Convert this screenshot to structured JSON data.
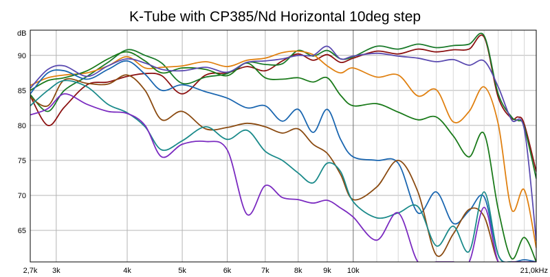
{
  "chart_data": {
    "type": "line",
    "title": "K-Tube with CP385/Nd Horizontal 10deg step",
    "ylabel": "dB",
    "x_scale": "log",
    "xlim": [
      2700,
      21000
    ],
    "ylim": [
      60.5,
      93.6
    ],
    "grid": true,
    "legend": "none",
    "x_ticks": [
      {
        "v": 2700,
        "label": "2,7k"
      },
      {
        "v": 3000,
        "label": "3k"
      },
      {
        "v": 4000,
        "label": "4k"
      },
      {
        "v": 5000,
        "label": "5k"
      },
      {
        "v": 6000,
        "label": "6k"
      },
      {
        "v": 7000,
        "label": "7k"
      },
      {
        "v": 8000,
        "label": "8k"
      },
      {
        "v": 9000,
        "label": "9k"
      },
      {
        "v": 10000,
        "label": "10k"
      },
      {
        "v": 21000,
        "label": "21,0kHz"
      }
    ],
    "y_ticks": [
      {
        "v": 65,
        "label": "65"
      },
      {
        "v": 70,
        "label": "70"
      },
      {
        "v": 75,
        "label": "75"
      },
      {
        "v": 80,
        "label": "80"
      },
      {
        "v": 85,
        "label": "85"
      },
      {
        "v": 90,
        "label": "90"
      }
    ],
    "minor_x_grid": [
      11000,
      12000,
      13000,
      14000,
      15000,
      16000,
      17000,
      18000,
      19000,
      20000
    ],
    "series": [
      {
        "color": "#8b1010",
        "points": [
          [
            2700,
            84.2
          ],
          [
            2900,
            80.0
          ],
          [
            3100,
            82.6
          ],
          [
            3400,
            85.8
          ],
          [
            3700,
            86.2
          ],
          [
            4000,
            87.0
          ],
          [
            4300,
            87.4
          ],
          [
            4600,
            87.1
          ],
          [
            5000,
            84.5
          ],
          [
            5500,
            87.2
          ],
          [
            6000,
            87.5
          ],
          [
            6500,
            88.4
          ],
          [
            7000,
            87.8
          ],
          [
            7500,
            89.2
          ],
          [
            8000,
            90.2
          ],
          [
            8500,
            89.3
          ],
          [
            9000,
            90.1
          ],
          [
            9500,
            89.0
          ],
          [
            10000,
            89.6
          ],
          [
            11000,
            90.6
          ],
          [
            12000,
            90.2
          ],
          [
            13000,
            90.9
          ],
          [
            14000,
            90.5
          ],
          [
            15000,
            90.8
          ],
          [
            16000,
            90.9
          ],
          [
            17000,
            92.6
          ],
          [
            18000,
            84.0
          ],
          [
            19000,
            81.0
          ],
          [
            19500,
            81.2
          ],
          [
            20000,
            80.2
          ],
          [
            21000,
            73.4
          ]
        ]
      },
      {
        "color": "#1a7a2a",
        "points": [
          [
            2700,
            84.4
          ],
          [
            2900,
            82.0
          ],
          [
            3100,
            85.0
          ],
          [
            3400,
            87.0
          ],
          [
            3700,
            89.0
          ],
          [
            4000,
            90.8
          ],
          [
            4300,
            90.0
          ],
          [
            4600,
            88.9
          ],
          [
            5000,
            86.0
          ],
          [
            5500,
            86.9
          ],
          [
            6000,
            87.4
          ],
          [
            6500,
            89.0
          ],
          [
            7000,
            88.7
          ],
          [
            7500,
            88.8
          ],
          [
            8000,
            90.7
          ],
          [
            8500,
            89.9
          ],
          [
            9000,
            90.7
          ],
          [
            9500,
            89.5
          ],
          [
            10000,
            89.8
          ],
          [
            11000,
            91.3
          ],
          [
            12000,
            90.9
          ],
          [
            13000,
            91.6
          ],
          [
            14000,
            91.1
          ],
          [
            15000,
            91.4
          ],
          [
            16000,
            91.6
          ],
          [
            17000,
            92.8
          ],
          [
            18000,
            84.5
          ],
          [
            19000,
            81.2
          ],
          [
            19500,
            80.7
          ],
          [
            20000,
            79.8
          ],
          [
            21000,
            72.4
          ]
        ]
      },
      {
        "color": "#e08010",
        "points": [
          [
            2700,
            85.7
          ],
          [
            2900,
            86.8
          ],
          [
            3100,
            87.2
          ],
          [
            3400,
            87.5
          ],
          [
            3700,
            88.5
          ],
          [
            4000,
            89.8
          ],
          [
            4300,
            88.2
          ],
          [
            4600,
            88.3
          ],
          [
            5000,
            88.5
          ],
          [
            5500,
            89.1
          ],
          [
            6000,
            88.4
          ],
          [
            6500,
            89.3
          ],
          [
            7000,
            89.6
          ],
          [
            7500,
            90.4
          ],
          [
            8000,
            90.6
          ],
          [
            8500,
            90.1
          ],
          [
            9000,
            88.5
          ],
          [
            9500,
            87.5
          ],
          [
            10000,
            88.2
          ],
          [
            11000,
            86.9
          ],
          [
            12000,
            87.2
          ],
          [
            13000,
            84.2
          ],
          [
            14000,
            85.1
          ],
          [
            15000,
            80.5
          ],
          [
            16000,
            82.0
          ],
          [
            17000,
            85.5
          ],
          [
            18000,
            80.2
          ],
          [
            19000,
            68.0
          ],
          [
            20000,
            70.8
          ],
          [
            21000,
            62.5
          ]
        ]
      },
      {
        "color": "#1a7a1a",
        "points": [
          [
            2700,
            85.0
          ],
          [
            2900,
            86.4
          ],
          [
            3100,
            86.8
          ],
          [
            3400,
            87.8
          ],
          [
            3700,
            89.5
          ],
          [
            4000,
            90.5
          ],
          [
            4300,
            89.2
          ],
          [
            4600,
            87.5
          ],
          [
            5000,
            88.2
          ],
          [
            5500,
            88.0
          ],
          [
            6000,
            87.1
          ],
          [
            6500,
            88.9
          ],
          [
            7000,
            86.8
          ],
          [
            7500,
            86.6
          ],
          [
            8000,
            86.8
          ],
          [
            8500,
            86.2
          ],
          [
            9000,
            86.8
          ],
          [
            9500,
            84.3
          ],
          [
            10000,
            82.8
          ],
          [
            11000,
            83.1
          ],
          [
            12000,
            81.9
          ],
          [
            13000,
            80.8
          ],
          [
            14000,
            81.2
          ],
          [
            15000,
            78.5
          ],
          [
            16000,
            75.5
          ],
          [
            17000,
            78.8
          ],
          [
            18000,
            68.0
          ],
          [
            19000,
            61.0
          ],
          [
            20000,
            64.0
          ],
          [
            21000,
            60.5
          ]
        ]
      },
      {
        "color": "#5a4ab0",
        "points": [
          [
            2700,
            85.3
          ],
          [
            2900,
            88.0
          ],
          [
            3100,
            88.5
          ],
          [
            3400,
            87.0
          ],
          [
            3700,
            88.5
          ],
          [
            4000,
            89.5
          ],
          [
            4300,
            88.9
          ],
          [
            4600,
            88.0
          ],
          [
            5000,
            87.8
          ],
          [
            5500,
            88.3
          ],
          [
            6000,
            87.6
          ],
          [
            6500,
            89.0
          ],
          [
            7000,
            89.2
          ],
          [
            7500,
            89.5
          ],
          [
            8000,
            90.0
          ],
          [
            8500,
            90.0
          ],
          [
            9000,
            91.3
          ],
          [
            9500,
            89.5
          ],
          [
            10000,
            89.9
          ],
          [
            11000,
            90.3
          ],
          [
            12000,
            89.9
          ],
          [
            13000,
            89.6
          ],
          [
            14000,
            89.1
          ],
          [
            15000,
            89.4
          ],
          [
            16000,
            88.6
          ],
          [
            17000,
            89.2
          ],
          [
            18000,
            85.5
          ],
          [
            19000,
            80.8
          ],
          [
            20000,
            79.5
          ],
          [
            21000,
            63.5
          ]
        ]
      },
      {
        "color": "#1a66b0",
        "points": [
          [
            2700,
            84.5
          ],
          [
            2900,
            87.5
          ],
          [
            3100,
            87.8
          ],
          [
            3400,
            86.6
          ],
          [
            3700,
            88.0
          ],
          [
            4000,
            89.2
          ],
          [
            4300,
            87.3
          ],
          [
            4600,
            85.0
          ],
          [
            5000,
            85.8
          ],
          [
            5500,
            84.8
          ],
          [
            6000,
            83.9
          ],
          [
            6500,
            82.5
          ],
          [
            7000,
            82.8
          ],
          [
            7500,
            80.6
          ],
          [
            8000,
            82.3
          ],
          [
            8500,
            79.0
          ],
          [
            9000,
            82.3
          ],
          [
            9500,
            78.0
          ],
          [
            10000,
            75.5
          ],
          [
            11000,
            75.0
          ],
          [
            12000,
            74.6
          ],
          [
            13000,
            67.5
          ],
          [
            14000,
            70.5
          ],
          [
            15000,
            66.0
          ],
          [
            16000,
            67.8
          ],
          [
            17000,
            69.8
          ],
          [
            18000,
            61.5
          ],
          [
            19000,
            60.5
          ],
          [
            20000,
            60.8
          ],
          [
            21000,
            60.5
          ]
        ]
      },
      {
        "color": "#8a4a10",
        "points": [
          [
            2700,
            84.0
          ],
          [
            2900,
            82.8
          ],
          [
            3100,
            86.5
          ],
          [
            3400,
            86.0
          ],
          [
            3700,
            85.9
          ],
          [
            4000,
            87.2
          ],
          [
            4300,
            85.0
          ],
          [
            4600,
            80.8
          ],
          [
            5000,
            82.0
          ],
          [
            5500,
            79.5
          ],
          [
            6000,
            79.7
          ],
          [
            6500,
            80.3
          ],
          [
            7000,
            79.8
          ],
          [
            7500,
            78.9
          ],
          [
            8000,
            79.5
          ],
          [
            8500,
            77.3
          ],
          [
            9000,
            76.0
          ],
          [
            9500,
            73.0
          ],
          [
            10000,
            69.4
          ],
          [
            11000,
            71.2
          ],
          [
            12000,
            75.0
          ],
          [
            13000,
            70.5
          ],
          [
            14000,
            61.5
          ],
          [
            15000,
            64.5
          ],
          [
            16000,
            68.0
          ],
          [
            17000,
            67.0
          ],
          [
            18000,
            60.5
          ],
          [
            19000,
            60.5
          ],
          [
            20000,
            60.5
          ],
          [
            21000,
            60.5
          ]
        ]
      },
      {
        "color": "#1a8a8a",
        "points": [
          [
            2700,
            82.8
          ],
          [
            2900,
            85.0
          ],
          [
            3100,
            86.4
          ],
          [
            3400,
            85.5
          ],
          [
            3700,
            83.0
          ],
          [
            4000,
            81.8
          ],
          [
            4300,
            79.8
          ],
          [
            4600,
            76.5
          ],
          [
            5000,
            77.8
          ],
          [
            5500,
            79.8
          ],
          [
            6000,
            78.0
          ],
          [
            6500,
            79.3
          ],
          [
            7000,
            76.3
          ],
          [
            7500,
            75.0
          ],
          [
            8000,
            73.2
          ],
          [
            8500,
            71.8
          ],
          [
            9000,
            74.6
          ],
          [
            9500,
            73.4
          ],
          [
            10000,
            69.1
          ],
          [
            11000,
            66.8
          ],
          [
            12000,
            67.5
          ],
          [
            13000,
            68.4
          ],
          [
            14000,
            62.8
          ],
          [
            15000,
            65.6
          ],
          [
            16000,
            62.0
          ],
          [
            17000,
            70.5
          ],
          [
            18000,
            61.5
          ],
          [
            19000,
            60.5
          ],
          [
            20000,
            60.5
          ],
          [
            21000,
            60.5
          ]
        ]
      },
      {
        "color": "#7a2ac0",
        "points": [
          [
            2700,
            81.5
          ],
          [
            2900,
            82.4
          ],
          [
            3100,
            84.5
          ],
          [
            3400,
            83.0
          ],
          [
            3700,
            82.0
          ],
          [
            4000,
            81.7
          ],
          [
            4300,
            80.0
          ],
          [
            4600,
            75.5
          ],
          [
            5000,
            77.3
          ],
          [
            5500,
            77.7
          ],
          [
            6000,
            76.5
          ],
          [
            6500,
            67.3
          ],
          [
            7000,
            71.4
          ],
          [
            7500,
            69.7
          ],
          [
            8000,
            69.4
          ],
          [
            8500,
            68.9
          ],
          [
            9000,
            69.3
          ],
          [
            9500,
            68.2
          ],
          [
            10000,
            66.9
          ],
          [
            11000,
            63.6
          ],
          [
            12000,
            67.5
          ],
          [
            13000,
            60.5
          ],
          [
            14000,
            60.5
          ],
          [
            15000,
            60.5
          ],
          [
            16000,
            60.5
          ],
          [
            17000,
            68.3
          ],
          [
            18000,
            60.5
          ],
          [
            19000,
            60.5
          ],
          [
            20000,
            60.5
          ],
          [
            21000,
            60.5
          ]
        ]
      }
    ]
  }
}
